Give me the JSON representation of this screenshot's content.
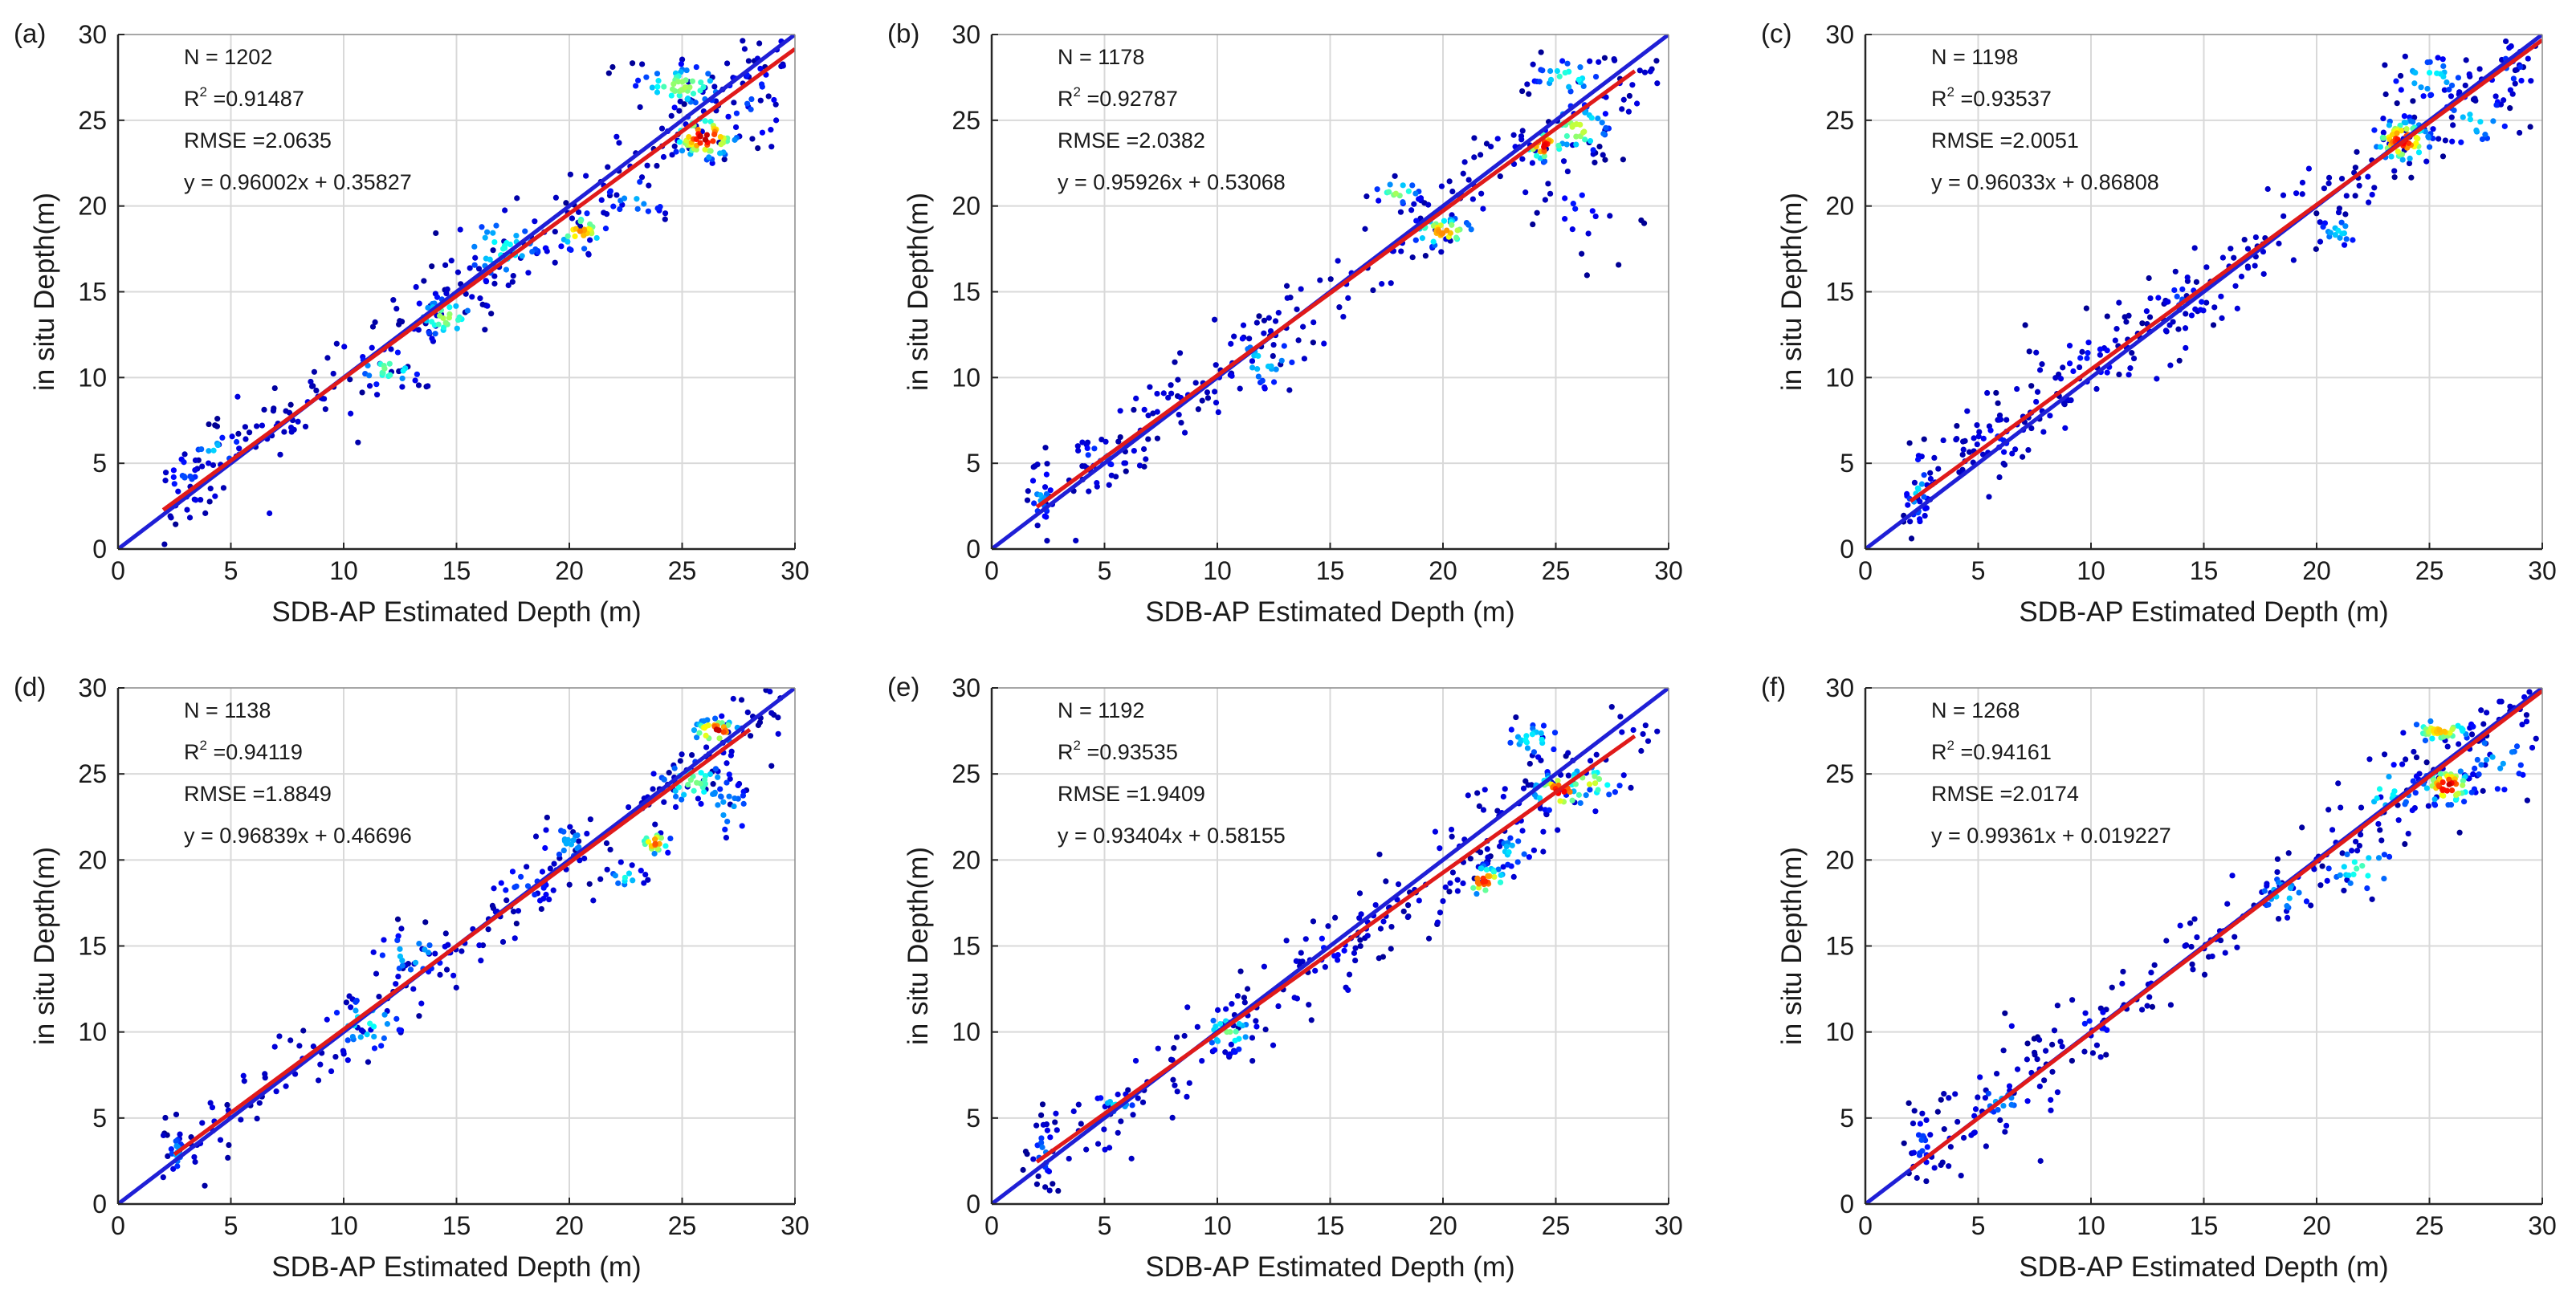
{
  "figure": {
    "xlabel": "SDB-AP Estimated Depth (m)",
    "ylabel": "in situ Depth(m)",
    "colors": {
      "one_to_one": "#1f1fd6",
      "fit": "#e01a1a",
      "grid": "#d9d9d9",
      "axis": "#262626"
    }
  },
  "chart_data": [
    {
      "type": "scatter",
      "panel": "(a)",
      "title": "",
      "xlim": [
        0,
        30
      ],
      "ylim": [
        0,
        30
      ],
      "xticks": [
        0,
        5,
        10,
        15,
        20,
        25,
        30
      ],
      "yticks": [
        0,
        5,
        10,
        15,
        20,
        25,
        30
      ],
      "xlabel": "SDB-AP Estimated Depth (m)",
      "ylabel": "in situ Depth(m)",
      "grid": true,
      "stats": {
        "n": "N = 1202",
        "r2_base": "R",
        "r2_sup": "2",
        "r2_val": " =0.91487",
        "rmse": "RMSE =2.0635",
        "eq": "y = 0.96002x + 0.35827"
      },
      "fit": {
        "slope": 0.96002,
        "intercept": 0.35827,
        "x_range": [
          2,
          30
        ]
      },
      "one_to_one": {
        "x_range": [
          0,
          30
        ]
      },
      "clusters": [
        {
          "cx": 3,
          "cy": 4,
          "sx": 0.6,
          "sy": 1.2,
          "n": 20,
          "d": 0.2
        },
        {
          "cx": 4.5,
          "cy": 5.8,
          "sx": 0.8,
          "sy": 0.5,
          "n": 15,
          "d": 0.35
        },
        {
          "cx": 7,
          "cy": 7.2,
          "sx": 1.2,
          "sy": 0.7,
          "n": 15,
          "d": 0.1
        },
        {
          "cx": 12,
          "cy": 10.5,
          "sx": 0.8,
          "sy": 0.6,
          "n": 25,
          "d": 0.5
        },
        {
          "cx": 14.5,
          "cy": 13.5,
          "sx": 0.8,
          "sy": 0.7,
          "n": 40,
          "d": 0.55
        },
        {
          "cx": 17,
          "cy": 17.5,
          "sx": 1.2,
          "sy": 1.2,
          "n": 45,
          "d": 0.4
        },
        {
          "cx": 20.5,
          "cy": 18.5,
          "sx": 0.6,
          "sy": 0.6,
          "n": 30,
          "d": 0.75
        },
        {
          "cx": 23,
          "cy": 20.5,
          "sx": 1,
          "sy": 0.8,
          "n": 20,
          "d": 0.3
        },
        {
          "cx": 25,
          "cy": 27,
          "sx": 1.2,
          "sy": 0.7,
          "n": 55,
          "d": 0.55
        },
        {
          "cx": 26,
          "cy": 24,
          "sx": 0.8,
          "sy": 0.7,
          "n": 70,
          "d": 0.95
        },
        {
          "cx": 28,
          "cy": 26,
          "sx": 1,
          "sy": 2,
          "n": 20,
          "d": 0.2
        }
      ]
    },
    {
      "type": "scatter",
      "panel": "(b)",
      "title": "",
      "xlim": [
        0,
        30
      ],
      "ylim": [
        0,
        30
      ],
      "xticks": [
        0,
        5,
        10,
        15,
        20,
        25,
        30
      ],
      "yticks": [
        0,
        5,
        10,
        15,
        20,
        25,
        30
      ],
      "xlabel": "SDB-AP Estimated Depth (m)",
      "ylabel": "in situ Depth(m)",
      "grid": true,
      "stats": {
        "n": "N = 1178",
        "r2_base": "R",
        "r2_sup": "2",
        "r2_val": " =0.92787",
        "rmse": "RMSE =2.0382",
        "eq": "y = 0.95926x + 0.53068"
      },
      "fit": {
        "slope": 0.95926,
        "intercept": 0.53068,
        "x_range": [
          2,
          28.5
        ]
      },
      "one_to_one": {
        "x_range": [
          0,
          30
        ]
      },
      "clusters": [
        {
          "cx": 2.2,
          "cy": 3.2,
          "sx": 0.3,
          "sy": 1,
          "n": 25,
          "d": 0.3
        },
        {
          "cx": 5,
          "cy": 5.5,
          "sx": 0.8,
          "sy": 0.5,
          "n": 20,
          "d": 0.25
        },
        {
          "cx": 12,
          "cy": 11,
          "sx": 1,
          "sy": 1,
          "n": 30,
          "d": 0.35
        },
        {
          "cx": 18,
          "cy": 20.8,
          "sx": 0.6,
          "sy": 0.4,
          "n": 20,
          "d": 0.55
        },
        {
          "cx": 20,
          "cy": 18.5,
          "sx": 0.8,
          "sy": 0.5,
          "n": 40,
          "d": 0.75
        },
        {
          "cx": 24.5,
          "cy": 23.5,
          "sx": 0.5,
          "sy": 0.5,
          "n": 30,
          "d": 0.9
        },
        {
          "cx": 25.5,
          "cy": 27.5,
          "sx": 0.9,
          "sy": 0.6,
          "n": 30,
          "d": 0.45
        },
        {
          "cx": 26,
          "cy": 24.5,
          "sx": 0.8,
          "sy": 0.8,
          "n": 35,
          "d": 0.6
        },
        {
          "cx": 26,
          "cy": 20,
          "sx": 1,
          "sy": 1.5,
          "n": 25,
          "d": 0.15
        }
      ]
    },
    {
      "type": "scatter",
      "panel": "(c)",
      "title": "",
      "xlim": [
        0,
        30
      ],
      "ylim": [
        0,
        30
      ],
      "xticks": [
        0,
        5,
        10,
        15,
        20,
        25,
        30
      ],
      "yticks": [
        0,
        5,
        10,
        15,
        20,
        25,
        30
      ],
      "xlabel": "SDB-AP Estimated Depth (m)",
      "ylabel": "in situ Depth(m)",
      "grid": true,
      "stats": {
        "n": "N = 1198",
        "r2_base": "R",
        "r2_sup": "2",
        "r2_val": " =0.93537",
        "rmse": "RMSE =2.0051",
        "eq": "y = 0.96033x + 0.86808"
      },
      "fit": {
        "slope": 0.96033,
        "intercept": 0.86808,
        "x_range": [
          2,
          30
        ]
      },
      "one_to_one": {
        "x_range": [
          0,
          30
        ]
      },
      "clusters": [
        {
          "cx": 2.3,
          "cy": 3.5,
          "sx": 0.3,
          "sy": 1.2,
          "n": 30,
          "d": 0.35
        },
        {
          "cx": 6,
          "cy": 6.5,
          "sx": 1,
          "sy": 1,
          "n": 25,
          "d": 0.15
        },
        {
          "cx": 10,
          "cy": 11,
          "sx": 1.5,
          "sy": 1.3,
          "n": 30,
          "d": 0.15
        },
        {
          "cx": 14,
          "cy": 14.5,
          "sx": 1,
          "sy": 0.8,
          "n": 20,
          "d": 0.2
        },
        {
          "cx": 21,
          "cy": 18.5,
          "sx": 0.6,
          "sy": 0.5,
          "n": 20,
          "d": 0.35
        },
        {
          "cx": 23.8,
          "cy": 23.8,
          "sx": 0.7,
          "sy": 0.7,
          "n": 80,
          "d": 0.9
        },
        {
          "cx": 25,
          "cy": 27.5,
          "sx": 1,
          "sy": 0.7,
          "n": 30,
          "d": 0.4
        },
        {
          "cx": 27,
          "cy": 25,
          "sx": 1,
          "sy": 1,
          "n": 25,
          "d": 0.35
        },
        {
          "cx": 28.5,
          "cy": 28,
          "sx": 0.8,
          "sy": 1,
          "n": 20,
          "d": 0.2
        }
      ]
    },
    {
      "type": "scatter",
      "panel": "(d)",
      "title": "",
      "xlim": [
        0,
        30
      ],
      "ylim": [
        0,
        30
      ],
      "xticks": [
        0,
        5,
        10,
        15,
        20,
        25,
        30
      ],
      "yticks": [
        0,
        5,
        10,
        15,
        20,
        25,
        30
      ],
      "xlabel": "SDB-AP Estimated Depth (m)",
      "ylabel": "in situ Depth(m)",
      "grid": true,
      "stats": {
        "n": "N = 1138",
        "r2_base": "R",
        "r2_sup": "2",
        "r2_val": " =0.94119",
        "rmse": "RMSE =1.8849",
        "eq": "y = 0.96839x + 0.46696"
      },
      "fit": {
        "slope": 0.96839,
        "intercept": 0.46696,
        "x_range": [
          2.5,
          28
        ]
      },
      "one_to_one": {
        "x_range": [
          0,
          30
        ]
      },
      "clusters": [
        {
          "cx": 2.6,
          "cy": 3,
          "sx": 0.2,
          "sy": 0.7,
          "n": 20,
          "d": 0.3
        },
        {
          "cx": 11,
          "cy": 10.5,
          "sx": 1,
          "sy": 1,
          "n": 30,
          "d": 0.4
        },
        {
          "cx": 13,
          "cy": 14.5,
          "sx": 1,
          "sy": 0.8,
          "n": 25,
          "d": 0.35
        },
        {
          "cx": 18,
          "cy": 18.5,
          "sx": 1,
          "sy": 1,
          "n": 20,
          "d": 0.2
        },
        {
          "cx": 20,
          "cy": 21,
          "sx": 0.8,
          "sy": 0.8,
          "n": 20,
          "d": 0.3
        },
        {
          "cx": 22.5,
          "cy": 19,
          "sx": 0.5,
          "sy": 0.4,
          "n": 15,
          "d": 0.4
        },
        {
          "cx": 23.8,
          "cy": 21,
          "sx": 0.4,
          "sy": 0.4,
          "n": 20,
          "d": 0.8
        },
        {
          "cx": 25.5,
          "cy": 24.5,
          "sx": 1,
          "sy": 0.8,
          "n": 40,
          "d": 0.5
        },
        {
          "cx": 26.5,
          "cy": 27.5,
          "sx": 0.6,
          "sy": 0.4,
          "n": 35,
          "d": 0.95
        },
        {
          "cx": 27,
          "cy": 23,
          "sx": 0.8,
          "sy": 1,
          "n": 20,
          "d": 0.3
        }
      ]
    },
    {
      "type": "scatter",
      "panel": "(e)",
      "title": "",
      "xlim": [
        0,
        30
      ],
      "ylim": [
        0,
        30
      ],
      "xticks": [
        0,
        5,
        10,
        15,
        20,
        25,
        30
      ],
      "yticks": [
        0,
        5,
        10,
        15,
        20,
        25,
        30
      ],
      "xlabel": "SDB-AP Estimated Depth (m)",
      "ylabel": "in situ Depth(m)",
      "grid": true,
      "stats": {
        "n": "N = 1192",
        "r2_base": "R",
        "r2_sup": "2",
        "r2_val": " =0.93535",
        "rmse": "RMSE =1.9409",
        "eq": "y = 0.93404x + 0.58155"
      },
      "fit": {
        "slope": 0.93404,
        "intercept": 0.58155,
        "x_range": [
          2,
          28.5
        ]
      },
      "one_to_one": {
        "x_range": [
          0,
          30
        ]
      },
      "clusters": [
        {
          "cx": 2.3,
          "cy": 3,
          "sx": 0.3,
          "sy": 1,
          "n": 25,
          "d": 0.25
        },
        {
          "cx": 5.5,
          "cy": 5.8,
          "sx": 0.6,
          "sy": 0.4,
          "n": 15,
          "d": 0.35
        },
        {
          "cx": 10.5,
          "cy": 10,
          "sx": 0.7,
          "sy": 0.7,
          "n": 30,
          "d": 0.5
        },
        {
          "cx": 15,
          "cy": 15,
          "sx": 1,
          "sy": 1,
          "n": 20,
          "d": 0.15
        },
        {
          "cx": 21.8,
          "cy": 18.8,
          "sx": 0.6,
          "sy": 0.5,
          "n": 35,
          "d": 0.85
        },
        {
          "cx": 23,
          "cy": 20.5,
          "sx": 0.6,
          "sy": 0.6,
          "n": 20,
          "d": 0.35
        },
        {
          "cx": 24,
          "cy": 27,
          "sx": 0.8,
          "sy": 0.6,
          "n": 25,
          "d": 0.4
        },
        {
          "cx": 25.2,
          "cy": 24,
          "sx": 0.7,
          "sy": 0.6,
          "n": 40,
          "d": 0.9
        },
        {
          "cx": 26.5,
          "cy": 24.5,
          "sx": 0.8,
          "sy": 0.6,
          "n": 30,
          "d": 0.6
        }
      ]
    },
    {
      "type": "scatter",
      "panel": "(f)",
      "title": "",
      "xlim": [
        0,
        30
      ],
      "ylim": [
        0,
        30
      ],
      "xticks": [
        0,
        5,
        10,
        15,
        20,
        25,
        30
      ],
      "yticks": [
        0,
        5,
        10,
        15,
        20,
        25,
        30
      ],
      "xlabel": "SDB-AP Estimated Depth (m)",
      "ylabel": "in situ Depth(m)",
      "grid": true,
      "stats": {
        "n": "N = 1268",
        "r2_base": "R",
        "r2_sup": "2",
        "r2_val": " =0.94161",
        "rmse": "RMSE =2.0174",
        "eq": "y = 0.99361x + 0.019227"
      },
      "fit": {
        "slope": 0.99361,
        "intercept": 0.019227,
        "x_range": [
          2,
          30
        ]
      },
      "one_to_one": {
        "x_range": [
          0,
          30
        ]
      },
      "clusters": [
        {
          "cx": 2.5,
          "cy": 3.5,
          "sx": 0.3,
          "sy": 1.2,
          "n": 25,
          "d": 0.2
        },
        {
          "cx": 6,
          "cy": 6,
          "sx": 0.8,
          "sy": 0.6,
          "n": 15,
          "d": 0.3
        },
        {
          "cx": 10,
          "cy": 10.5,
          "sx": 1.2,
          "sy": 1,
          "n": 20,
          "d": 0.15
        },
        {
          "cx": 18.5,
          "cy": 18,
          "sx": 0.8,
          "sy": 0.8,
          "n": 20,
          "d": 0.35
        },
        {
          "cx": 22,
          "cy": 19.5,
          "sx": 1,
          "sy": 0.8,
          "n": 25,
          "d": 0.45
        },
        {
          "cx": 23,
          "cy": 24,
          "sx": 1,
          "sy": 1,
          "n": 25,
          "d": 0.4
        },
        {
          "cx": 25.5,
          "cy": 27.5,
          "sx": 0.8,
          "sy": 0.4,
          "n": 40,
          "d": 0.7
        },
        {
          "cx": 25.8,
          "cy": 24.3,
          "sx": 0.6,
          "sy": 0.6,
          "n": 60,
          "d": 0.95
        },
        {
          "cx": 28,
          "cy": 26,
          "sx": 1,
          "sy": 1.5,
          "n": 25,
          "d": 0.3
        }
      ]
    }
  ]
}
